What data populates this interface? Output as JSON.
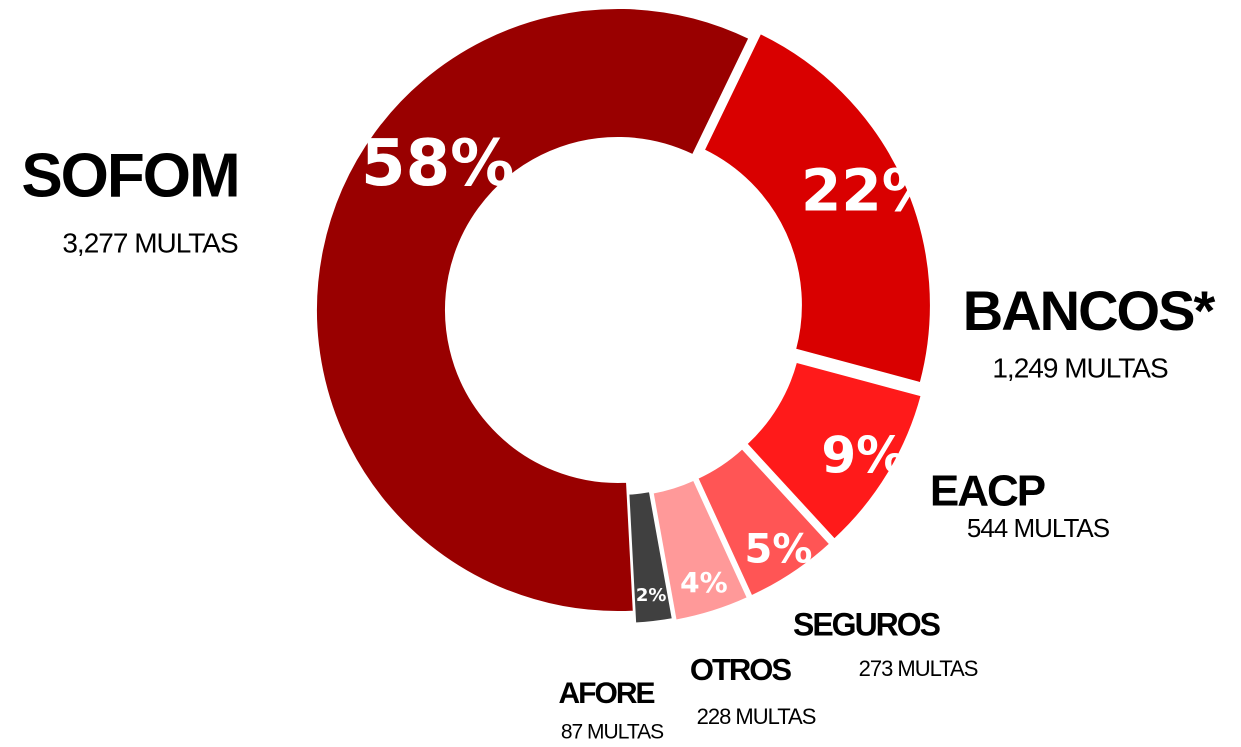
{
  "chart_data": {
    "type": "pie",
    "categories": [
      "SOFOM",
      "BANCOS*",
      "EACP",
      "SEGUROS",
      "OTROS",
      "AFORE"
    ],
    "details": [
      "3,277 MULTAS",
      "1,249 MULTAS",
      "544 MULTAS",
      "273 MULTAS",
      "228 MULTAS",
      "87 MULTAS"
    ],
    "values": [
      58,
      22,
      9,
      5,
      4,
      2
    ],
    "value_labels": [
      "58%",
      "22%",
      "9%",
      "5%",
      "4%",
      "2%"
    ],
    "colors": [
      "#990000",
      "#d90000",
      "#ff1a1a",
      "#ff5555",
      "#ff9999",
      "#404040"
    ]
  }
}
